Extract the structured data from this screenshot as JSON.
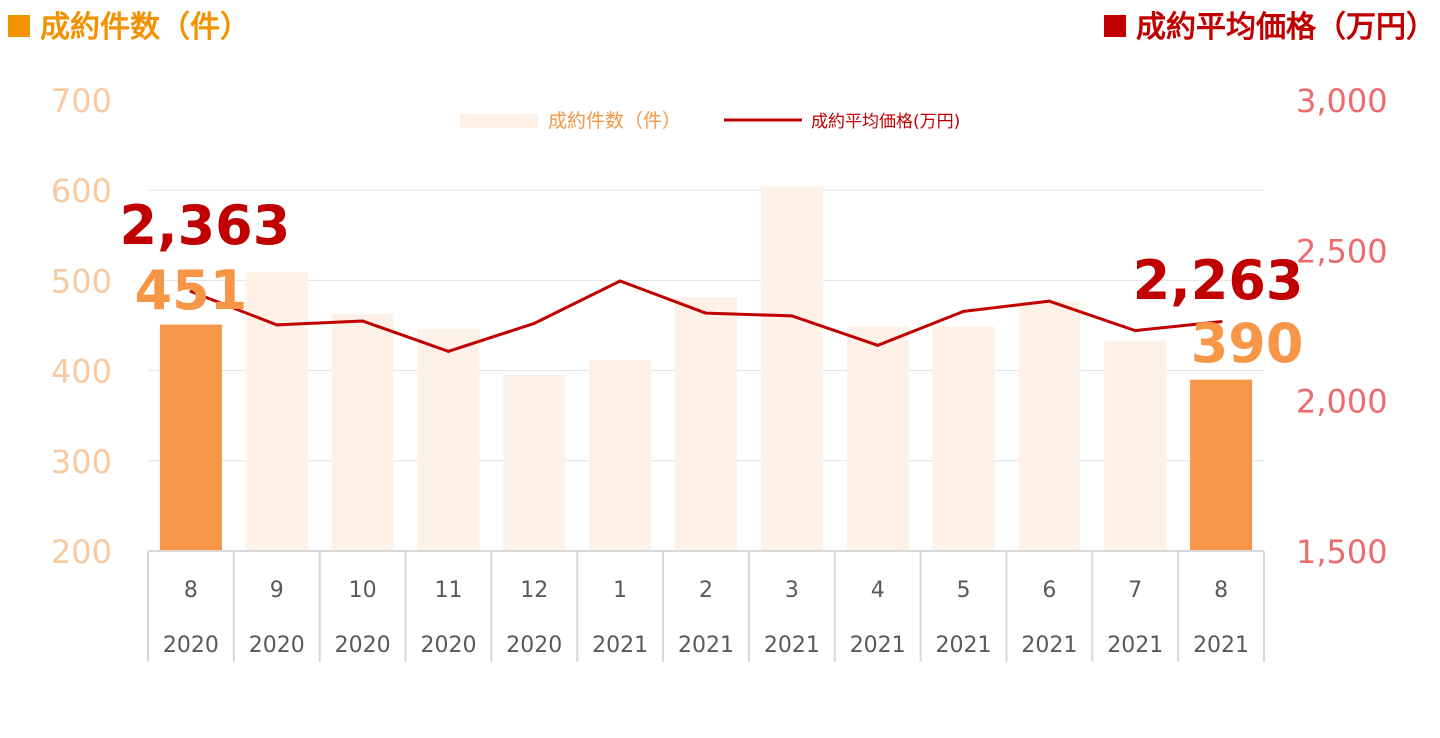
{
  "titles": {
    "left": "成約件数（件）",
    "right": "成約平均価格（万円）"
  },
  "colors": {
    "bar_highlight": "#f79646",
    "bar_normal": "#fdf1e8",
    "line": "#c00000",
    "left_axis": "#f9c9a0",
    "right_axis": "#ef6b6b",
    "left_title": "#f39200",
    "right_title": "#c00000",
    "highlight_count_label": "#f79646",
    "price_label": "#c00000",
    "grid": "#e3e3e3",
    "category_text": "#595959"
  },
  "chart_data": {
    "type": "bar",
    "categories": [
      "8",
      "9",
      "10",
      "11",
      "12",
      "1",
      "2",
      "3",
      "4",
      "5",
      "6",
      "7",
      "8"
    ],
    "category_years": [
      "2020",
      "2020",
      "2020",
      "2020",
      "2020",
      "2021",
      "2021",
      "2021",
      "2021",
      "2021",
      "2021",
      "2021",
      "2021"
    ],
    "left_axis": {
      "min": 200,
      "max": 700,
      "ticks": [
        "200",
        "300",
        "400",
        "500",
        "600",
        "700"
      ]
    },
    "right_axis": {
      "min": 1500,
      "max": 3000,
      "ticks": [
        "1,500",
        "2,000",
        "2,500",
        "3,000"
      ]
    },
    "series": [
      {
        "name": "成約件数(件)",
        "type": "bar",
        "axis": "left",
        "values": [
          451,
          509,
          463,
          446,
          395,
          412,
          481,
          604,
          449,
          449,
          477,
          433,
          390
        ],
        "highlight": [
          true,
          false,
          false,
          false,
          false,
          false,
          false,
          false,
          false,
          false,
          false,
          false,
          true
        ]
      },
      {
        "name": "成約平均価格(万円)",
        "type": "line",
        "axis": "right",
        "values": [
          2363,
          2252,
          2265,
          2164,
          2257,
          2398,
          2291,
          2282,
          2184,
          2297,
          2331,
          2233,
          2263
        ]
      }
    ],
    "annotations": [
      {
        "index": 0,
        "price": "2,363",
        "count": "451"
      },
      {
        "index": 12,
        "price": "2,263",
        "count": "390"
      }
    ],
    "legend": {
      "placement": "top-center"
    },
    "grid": true
  }
}
